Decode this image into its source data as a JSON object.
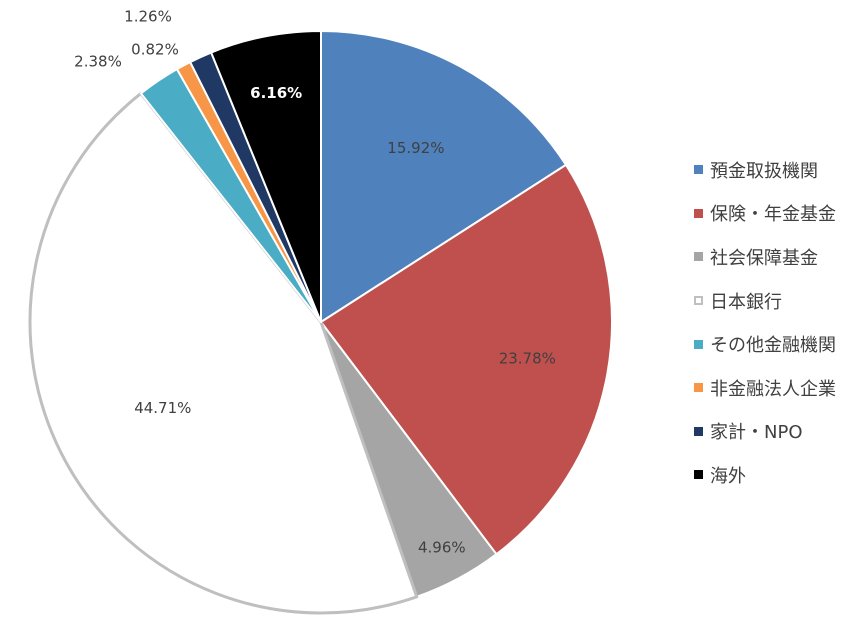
{
  "chart_data": {
    "type": "pie",
    "title": "",
    "start_angle_deg": 0,
    "direction": "clockwise",
    "slices": [
      {
        "label": "預金取扱機関",
        "value": 15.92,
        "display": "15.92%",
        "color": "#4F81BD",
        "label_color": "#404040"
      },
      {
        "label": "保険・年金基金",
        "value": 23.78,
        "display": "23.78%",
        "color": "#C0504D",
        "label_color": "#404040"
      },
      {
        "label": "社会保障基金",
        "value": 4.96,
        "display": "4.96%",
        "color": "#A5A5A5",
        "label_color": "#404040"
      },
      {
        "label": "日本銀行",
        "value": 44.71,
        "display": "44.71%",
        "color": "#FFFFFF",
        "outline": "#BFBFBF",
        "label_color": "#404040"
      },
      {
        "label": "その他金融機関",
        "value": 2.38,
        "display": "2.38%",
        "color": "#4BACC6",
        "label_color": "#404040"
      },
      {
        "label": "非金融法人企業",
        "value": 0.82,
        "display": "0.82%",
        "color": "#F79646",
        "label_color": "#404040"
      },
      {
        "label": "家計・NPO",
        "value": 1.26,
        "display": "1.26%",
        "color": "#1F3864",
        "label_color": "#404040"
      },
      {
        "label": "海外",
        "value": 6.16,
        "display": "6.16%",
        "color": "#000000",
        "label_color": "#FFFFFF"
      }
    ],
    "legend_position": "right"
  }
}
